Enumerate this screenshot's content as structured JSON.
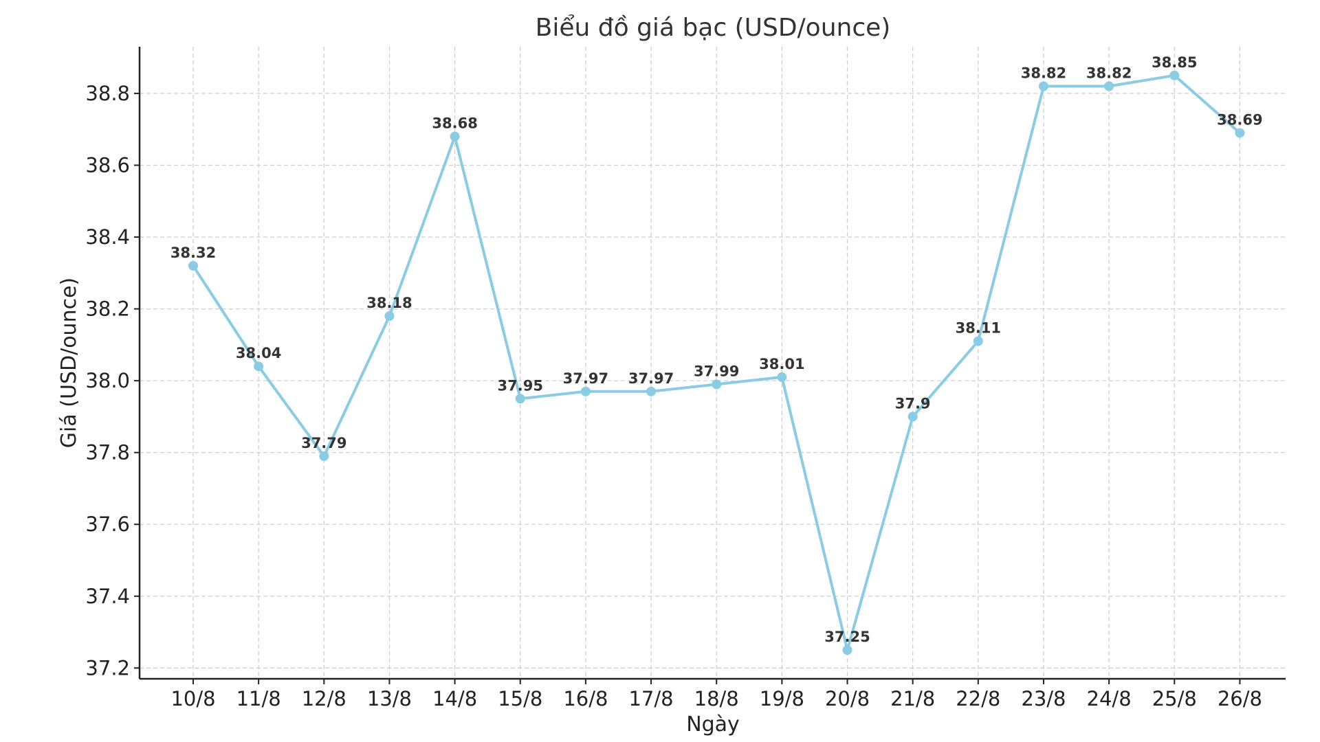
{
  "chart_data": {
    "type": "line",
    "title": "Biểu đồ giá bạc (USD/ounce)",
    "xlabel": "Ngày",
    "ylabel": "Giá (USD/ounce)",
    "categories": [
      "10/8",
      "11/8",
      "12/8",
      "13/8",
      "14/8",
      "15/8",
      "16/8",
      "17/8",
      "18/8",
      "19/8",
      "20/8",
      "21/8",
      "22/8",
      "23/8",
      "24/8",
      "25/8",
      "26/8"
    ],
    "values": [
      38.32,
      38.04,
      37.79,
      38.18,
      38.68,
      37.95,
      37.97,
      37.97,
      37.99,
      38.01,
      37.25,
      37.9,
      38.11,
      38.82,
      38.82,
      38.85,
      38.69
    ],
    "value_labels": [
      "38.32",
      "38.04",
      "37.79",
      "38.18",
      "38.68",
      "37.95",
      "37.97",
      "37.97",
      "37.99",
      "38.01",
      "37.25",
      "37.9",
      "38.11",
      "38.82",
      "38.82",
      "38.85",
      "38.69"
    ],
    "ylim": [
      37.17,
      38.93
    ],
    "yticks": [
      37.2,
      37.4,
      37.6,
      37.8,
      38.0,
      38.2,
      38.4,
      38.6,
      38.8
    ],
    "ytick_labels": [
      "37.2",
      "37.4",
      "37.6",
      "37.8",
      "38.0",
      "38.2",
      "38.4",
      "38.6",
      "38.8"
    ],
    "grid": true,
    "line_color": "#89CCE3",
    "marker_color": "#89CCE3"
  }
}
